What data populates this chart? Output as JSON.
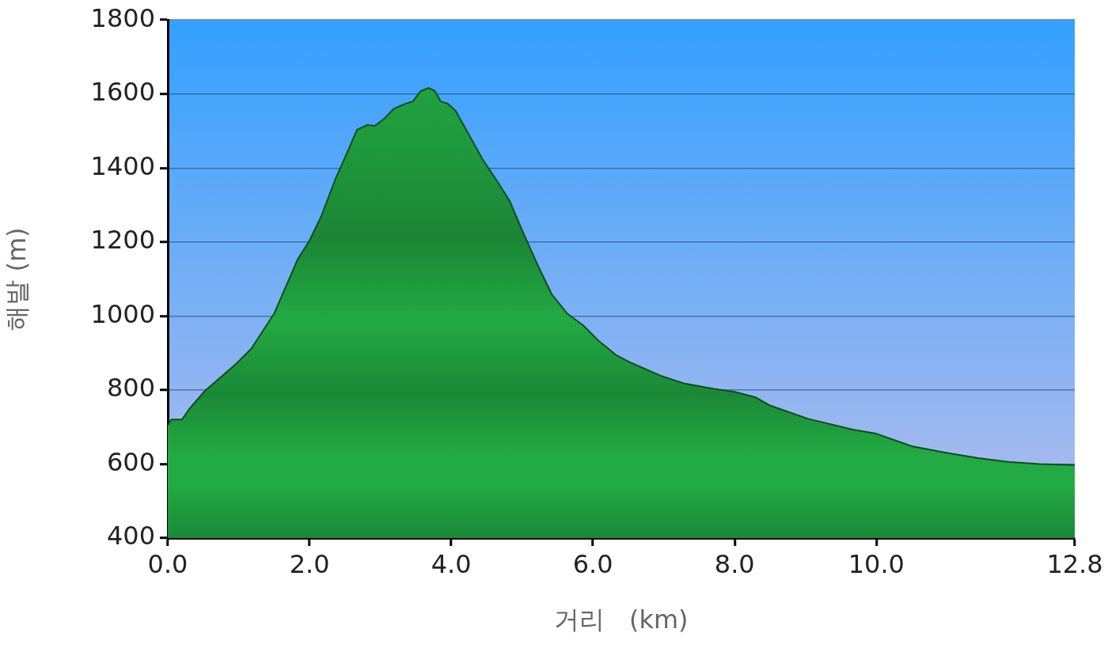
{
  "chart_data": {
    "type": "area",
    "xlabel": "거리   (km)",
    "ylabel": "해발 (m)",
    "x": [
      0.0,
      0.05,
      0.2,
      0.3,
      0.52,
      0.75,
      0.96,
      1.18,
      1.5,
      1.83,
      2.0,
      2.16,
      2.37,
      2.54,
      2.67,
      2.81,
      2.92,
      3.05,
      3.19,
      3.36,
      3.46,
      3.57,
      3.68,
      3.77,
      3.85,
      3.95,
      4.06,
      4.23,
      4.44,
      4.66,
      4.83,
      4.99,
      5.21,
      5.42,
      5.64,
      5.86,
      6.08,
      6.33,
      6.51,
      6.95,
      7.28,
      7.71,
      8.0,
      8.3,
      8.5,
      9.04,
      9.67,
      10.0,
      10.5,
      11.0,
      11.44,
      11.9,
      12.3,
      12.8
    ],
    "values": [
      705,
      720,
      720,
      748,
      797,
      835,
      870,
      912,
      1006,
      1152,
      1204,
      1267,
      1372,
      1445,
      1503,
      1516,
      1514,
      1532,
      1560,
      1574,
      1580,
      1608,
      1616,
      1608,
      1580,
      1574,
      1555,
      1497,
      1424,
      1361,
      1309,
      1236,
      1142,
      1058,
      1006,
      975,
      933,
      894,
      876,
      839,
      818,
      803,
      795,
      780,
      758,
      722,
      693,
      682,
      648,
      630,
      616,
      605,
      600,
      597
    ],
    "color": "#22aa44",
    "xlim": [
      0,
      12.8
    ],
    "ylim": [
      400,
      1800
    ],
    "xticks": [
      {
        "value": 0,
        "label": "0.0"
      },
      {
        "value": 2,
        "label": "2.0"
      },
      {
        "value": 4,
        "label": "4.0"
      },
      {
        "value": 6,
        "label": "6.0"
      },
      {
        "value": 8,
        "label": "8.0"
      },
      {
        "value": 10,
        "label": "10.0"
      },
      {
        "value": 12.8,
        "label": "12.8"
      }
    ],
    "yticks": [
      400,
      600,
      800,
      1000,
      1200,
      1400,
      1600,
      1800
    ],
    "grid": "y"
  }
}
